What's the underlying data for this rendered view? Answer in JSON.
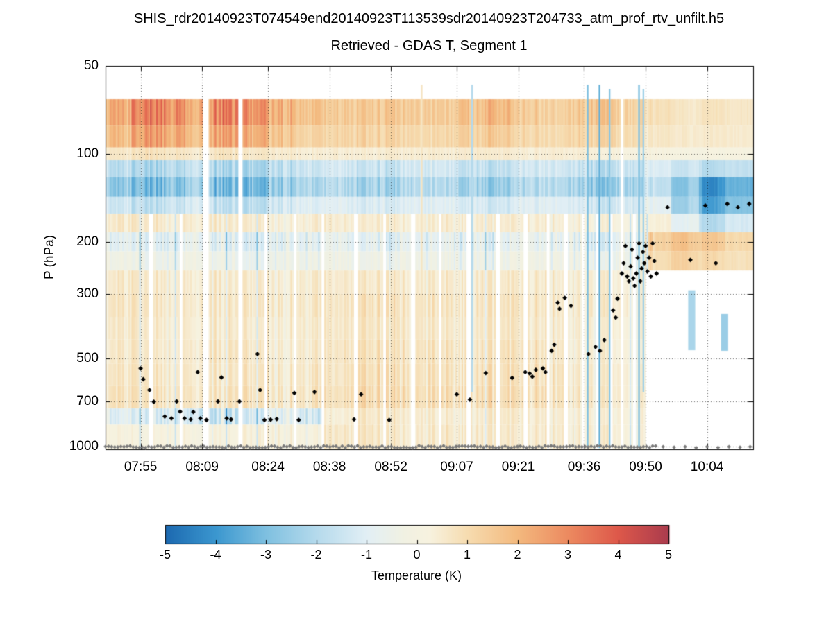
{
  "title": {
    "line1": "SHIS_rdr20140923T074549end20140923T113539sdr20140923T204733_atm_prof_rtv_unfilt.h5",
    "line2": "Retrieved - GDAS T, Segment 1"
  },
  "chart_data": {
    "type": "heatmap",
    "title": "Retrieved - GDAS T, Segment 1",
    "ylabel": "P (hPa)",
    "value_label": "Temperature (K)",
    "grid": true,
    "t_range": [
      0,
      147.5
    ],
    "p_range": [
      50,
      1020
    ],
    "x_ticks": [
      {
        "label": "07:55",
        "t": 8
      },
      {
        "label": "08:09",
        "t": 22
      },
      {
        "label": "08:24",
        "t": 37
      },
      {
        "label": "08:38",
        "t": 51
      },
      {
        "label": "08:52",
        "t": 65
      },
      {
        "label": "09:07",
        "t": 80
      },
      {
        "label": "09:21",
        "t": 94
      },
      {
        "label": "09:36",
        "t": 109
      },
      {
        "label": "09:50",
        "t": 123
      },
      {
        "label": "10:04",
        "t": 137
      }
    ],
    "y_ticks": [
      {
        "label": "50",
        "p": 50
      },
      {
        "label": "100",
        "p": 100
      },
      {
        "label": "200",
        "p": 200
      },
      {
        "label": "300",
        "p": 300
      },
      {
        "label": "500",
        "p": 500
      },
      {
        "label": "700",
        "p": 700
      },
      {
        "label": "1000",
        "p": 1000
      }
    ],
    "colorbar": {
      "range": [
        -5,
        5
      ],
      "tick_values": [
        -5,
        -4,
        -3,
        -2,
        -1,
        0,
        1,
        2,
        3,
        4,
        5
      ],
      "tick_labels": [
        "-5",
        "-4",
        "-3",
        "-2",
        "-1",
        "0",
        "1",
        "2",
        "3",
        "4",
        "5"
      ]
    },
    "colormap_stops": [
      [
        -5,
        "#1c69b0"
      ],
      [
        -4,
        "#3b97cf"
      ],
      [
        -3,
        "#7fc0e0"
      ],
      [
        -2,
        "#b5daec"
      ],
      [
        -1,
        "#e2eff5"
      ],
      [
        -0.25,
        "#f1f1e2"
      ],
      [
        0.25,
        "#f7f2df"
      ],
      [
        1,
        "#f6dcb0"
      ],
      [
        2,
        "#f3b97e"
      ],
      [
        3,
        "#ec8a60"
      ],
      [
        4,
        "#dd584a"
      ],
      [
        5,
        "#aa3b4d"
      ]
    ],
    "noise_seed": 7,
    "heatmap": {
      "pressure_edges": [
        50,
        65,
        80,
        95,
        105,
        120,
        140,
        160,
        185,
        215,
        250,
        300,
        360,
        430,
        520,
        620,
        740,
        840,
        1020
      ],
      "n_time_cols": 24,
      "values": [
        [
          null,
          null,
          null,
          null,
          null,
          null,
          null,
          null,
          null,
          null,
          null,
          null,
          null,
          null,
          null,
          null,
          null,
          null,
          null,
          null,
          null,
          null,
          null,
          null
        ],
        [
          2.2,
          3.2,
          3.0,
          2.2,
          3.1,
          2.8,
          2.2,
          1.6,
          1.4,
          1.5,
          1.6,
          1.4,
          1.3,
          1.7,
          2.0,
          1.5,
          1.3,
          1.5,
          1.6,
          1.2,
          0.8,
          0.6,
          0.7,
          0.6
        ],
        [
          1.8,
          2.6,
          2.4,
          1.8,
          2.4,
          2.2,
          1.7,
          1.2,
          1.1,
          1.2,
          1.2,
          1.0,
          1.0,
          1.3,
          1.5,
          1.1,
          1.0,
          1.2,
          1.2,
          0.9,
          0.6,
          0.5,
          0.5,
          0.5
        ],
        [
          0.6,
          0.8,
          0.7,
          0.5,
          0.7,
          0.6,
          0.5,
          0.4,
          0.4,
          0.4,
          0.5,
          0.4,
          0.4,
          0.5,
          0.5,
          0.4,
          0.4,
          0.4,
          0.3,
          0.2,
          0.2,
          0.1,
          0.1,
          0.1
        ],
        [
          -1.8,
          -2.2,
          -2.0,
          -1.6,
          -2.1,
          -2.2,
          -1.8,
          -1.4,
          -1.2,
          -1.5,
          -1.6,
          -1.3,
          -1.2,
          -1.6,
          -1.8,
          -1.4,
          -1.3,
          -1.6,
          -1.8,
          -1.5,
          -1.0,
          -1.4,
          -1.8,
          -1.6
        ],
        [
          -2.6,
          -3.1,
          -2.9,
          -2.3,
          -3.0,
          -3.1,
          -2.6,
          -2.0,
          -1.8,
          -2.2,
          -2.3,
          -1.9,
          -1.8,
          -2.3,
          -2.6,
          -2.0,
          -1.9,
          -2.3,
          -2.6,
          -2.2,
          -1.6,
          -2.6,
          -3.8,
          -3.2
        ],
        [
          -1.4,
          -1.8,
          -1.6,
          -1.2,
          -1.7,
          -1.8,
          -1.4,
          -1.0,
          -0.9,
          -1.1,
          -1.2,
          -1.0,
          -0.9,
          -1.2,
          -1.4,
          -1.0,
          -1.0,
          -1.2,
          -1.4,
          -1.2,
          -0.8,
          -2.2,
          -3.4,
          -2.8
        ],
        [
          0.5,
          0.6,
          0.5,
          0.4,
          0.5,
          0.5,
          0.4,
          0.4,
          0.4,
          0.4,
          0.5,
          0.4,
          0.4,
          0.5,
          0.5,
          0.4,
          0.4,
          0.4,
          0.3,
          0.2,
          0.3,
          -0.8,
          -1.8,
          -1.2
        ],
        [
          -0.8,
          -1.0,
          -0.9,
          -0.7,
          -1.0,
          -1.1,
          -0.9,
          -0.7,
          -0.6,
          -0.8,
          -0.9,
          -0.7,
          -0.6,
          -0.8,
          -0.9,
          -0.7,
          -0.7,
          -0.9,
          -1.0,
          -0.5,
          1.2,
          1.6,
          1.4,
          1.0
        ],
        [
          -0.3,
          -0.5,
          -0.4,
          -0.3,
          -0.5,
          -0.6,
          -0.4,
          -0.3,
          -0.3,
          -0.4,
          -0.4,
          -0.3,
          -0.3,
          -0.4,
          -0.5,
          -0.3,
          -0.3,
          -0.5,
          -0.5,
          -0.3,
          0.9,
          1.2,
          1.0,
          0.8
        ],
        [
          0.5,
          0.6,
          0.5,
          0.4,
          0.5,
          0.5,
          0.5,
          0.5,
          0.5,
          0.5,
          0.6,
          0.5,
          0.5,
          0.6,
          0.6,
          0.5,
          0.5,
          0.5,
          0.4,
          0.3,
          null,
          null,
          null,
          null
        ],
        [
          0.6,
          0.7,
          0.6,
          0.5,
          0.6,
          0.6,
          0.6,
          0.6,
          0.6,
          0.7,
          0.8,
          0.7,
          0.6,
          0.7,
          0.8,
          0.7,
          0.6,
          0.6,
          0.5,
          0.4,
          null,
          null,
          null,
          null
        ],
        [
          0.5,
          0.6,
          0.5,
          0.4,
          0.5,
          0.5,
          0.5,
          0.5,
          0.5,
          0.6,
          0.7,
          0.6,
          0.5,
          0.6,
          0.7,
          0.6,
          0.5,
          0.5,
          0.4,
          0.3,
          null,
          null,
          null,
          null
        ],
        [
          0.5,
          0.6,
          0.5,
          0.5,
          0.6,
          0.6,
          0.5,
          0.5,
          0.6,
          0.7,
          0.8,
          0.7,
          0.6,
          0.7,
          0.8,
          0.7,
          0.6,
          0.5,
          0.4,
          0.3,
          null,
          null,
          null,
          null
        ],
        [
          0.6,
          0.7,
          0.6,
          0.5,
          0.6,
          0.7,
          0.6,
          0.6,
          0.6,
          0.8,
          0.9,
          0.8,
          0.7,
          0.8,
          0.9,
          0.8,
          0.7,
          0.6,
          0.5,
          0.4,
          null,
          null,
          null,
          null
        ],
        [
          0.7,
          0.8,
          0.7,
          0.6,
          0.7,
          0.8,
          0.7,
          0.7,
          0.7,
          0.9,
          1.0,
          0.9,
          0.8,
          0.9,
          1.0,
          0.9,
          0.8,
          0.7,
          0.5,
          0.4,
          null,
          null,
          null,
          null
        ],
        [
          -0.9,
          -1.2,
          -1.0,
          -1.4,
          -1.6,
          -1.2,
          -0.8,
          -1.0,
          0.3,
          0.5,
          0.6,
          0.5,
          0.4,
          0.5,
          0.6,
          0.5,
          0.5,
          0.4,
          0.3,
          0.3,
          null,
          null,
          null,
          null
        ],
        [
          0.2,
          0.1,
          0.3,
          0.1,
          0.2,
          0.3,
          0.3,
          0.2,
          0.5,
          0.6,
          0.6,
          0.5,
          0.5,
          0.6,
          0.6,
          0.5,
          0.5,
          0.5,
          0.4,
          0.3,
          null,
          null,
          null,
          null
        ]
      ]
    },
    "gaps": [
      [
        10.5,
        1.0,
        0
      ],
      [
        17.2,
        0.8,
        0
      ],
      [
        22.8,
        1.2,
        1
      ],
      [
        30.8,
        1.2,
        1
      ],
      [
        36.6,
        0.9,
        0
      ],
      [
        43.2,
        1.0,
        0
      ],
      [
        49.5,
        0.7,
        0
      ],
      [
        57.2,
        1.0,
        0
      ],
      [
        63.6,
        0.8,
        0
      ],
      [
        70.2,
        1.0,
        0
      ],
      [
        76.2,
        0.9,
        0
      ],
      [
        82.8,
        1.0,
        0
      ],
      [
        89.4,
        0.9,
        0
      ],
      [
        95.8,
        1.0,
        0
      ],
      [
        100.8,
        0.8,
        0
      ],
      [
        104.8,
        0.9,
        0
      ],
      [
        108.8,
        0.8,
        0
      ],
      [
        112.2,
        0.7,
        0
      ],
      [
        115.2,
        0.8,
        0
      ],
      [
        117.8,
        0.7,
        1
      ],
      [
        120.4,
        0.6,
        0
      ]
    ],
    "spikes": [
      [
        72,
        0.7,
        58,
        1010
      ],
      [
        83.5,
        -2.0,
        58,
        650
      ],
      [
        109.8,
        -3.0,
        58,
        1010
      ],
      [
        112.5,
        -3.4,
        58,
        1010
      ],
      [
        114.8,
        -2.8,
        60,
        1010
      ],
      [
        121.5,
        -3.0,
        58,
        1010
      ],
      [
        122.5,
        -2.4,
        60,
        650
      ]
    ],
    "patches": [
      [
        133.5,
        1.6,
        292,
        468,
        -2.2
      ],
      [
        141.0,
        1.6,
        352,
        470,
        -2.5
      ]
    ],
    "black_markers": [
      [
        8,
        540
      ],
      [
        8.6,
        588
      ],
      [
        10,
        640
      ],
      [
        11,
        702
      ],
      [
        13.5,
        788
      ],
      [
        15,
        800
      ],
      [
        16.2,
        700
      ],
      [
        17,
        758
      ],
      [
        18,
        800
      ],
      [
        19.4,
        806
      ],
      [
        20,
        760
      ],
      [
        21,
        556
      ],
      [
        21.6,
        800
      ],
      [
        23,
        810
      ],
      [
        25.6,
        700
      ],
      [
        26.4,
        580
      ],
      [
        27.6,
        800
      ],
      [
        28.6,
        806
      ],
      [
        30.5,
        700
      ],
      [
        34.6,
        482
      ],
      [
        35.2,
        640
      ],
      [
        36.2,
        810
      ],
      [
        37.6,
        808
      ],
      [
        39,
        804
      ],
      [
        43,
        655
      ],
      [
        44,
        810
      ],
      [
        47.6,
        650
      ],
      [
        56.6,
        806
      ],
      [
        58.2,
        662
      ],
      [
        64.6,
        810
      ],
      [
        80,
        662
      ],
      [
        83,
        690
      ],
      [
        86.6,
        560
      ],
      [
        92.6,
        582
      ],
      [
        95.6,
        556
      ],
      [
        96.6,
        562
      ],
      [
        97.2,
        576
      ],
      [
        98,
        546
      ],
      [
        99.6,
        540
      ],
      [
        100.2,
        556
      ],
      [
        101.6,
        470
      ],
      [
        102.2,
        448
      ],
      [
        103,
        322
      ],
      [
        103.4,
        338
      ],
      [
        104.6,
        310
      ],
      [
        106,
        330
      ],
      [
        110,
        482
      ],
      [
        111.6,
        456
      ],
      [
        112.6,
        470
      ],
      [
        113.6,
        432
      ],
      [
        115.6,
        342
      ],
      [
        116.2,
        362
      ],
      [
        116.6,
        312
      ],
      [
        117.6,
        256
      ],
      [
        118,
        236
      ],
      [
        118.4,
        206
      ],
      [
        118.8,
        262
      ],
      [
        119.2,
        272
      ],
      [
        119.6,
        242
      ],
      [
        119.9,
        212
      ],
      [
        120.2,
        266
      ],
      [
        120.5,
        282
      ],
      [
        120.9,
        256
      ],
      [
        121.2,
        226
      ],
      [
        121.5,
        202
      ],
      [
        121.8,
        272
      ],
      [
        122.1,
        246
      ],
      [
        122.4,
        216
      ],
      [
        122.7,
        236
      ],
      [
        123,
        206
      ],
      [
        123.4,
        252
      ],
      [
        123.8,
        226
      ],
      [
        124.2,
        262
      ],
      [
        124.6,
        202
      ],
      [
        125,
        232
      ],
      [
        125.5,
        256
      ],
      [
        128,
        152
      ],
      [
        133.2,
        230
      ],
      [
        136.6,
        150
      ],
      [
        139,
        236
      ],
      [
        141.6,
        148
      ],
      [
        144,
        152
      ],
      [
        146.6,
        148
      ]
    ],
    "gray_marker_line": {
      "pressure": 1000,
      "t_start": 0,
      "t_end": 126,
      "step": 0.7
    },
    "gray_markers_extra": [
      [
        127,
        1000
      ],
      [
        129.5,
        1004
      ],
      [
        132,
        1000
      ],
      [
        134.5,
        1008
      ],
      [
        137,
        1000
      ],
      [
        139.5,
        1006
      ],
      [
        142,
        1000
      ],
      [
        144.5,
        1004
      ],
      [
        146.8,
        1000
      ]
    ]
  }
}
